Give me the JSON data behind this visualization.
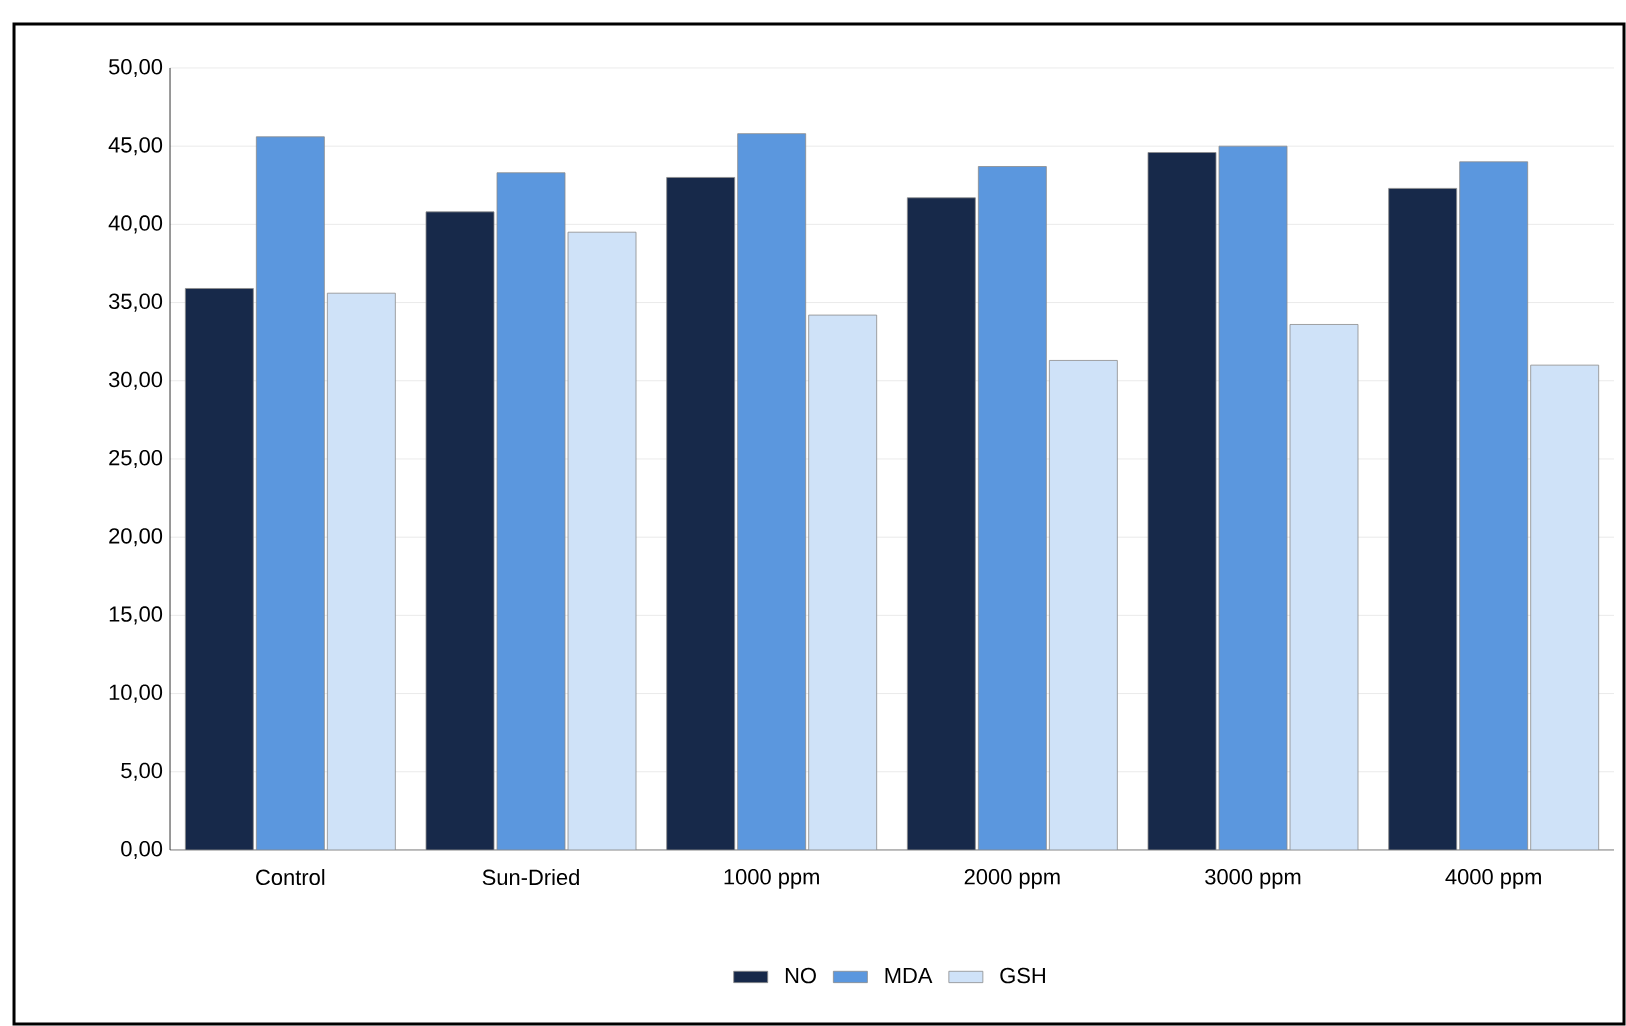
{
  "chart_data": {
    "type": "bar",
    "categories": [
      "Control",
      "Sun-Dried",
      "1000 ppm",
      "2000 ppm",
      "3000 ppm",
      "4000 ppm"
    ],
    "series": [
      {
        "name": "NO",
        "color": "#17294a",
        "values": [
          35.9,
          40.8,
          43.0,
          41.7,
          44.6,
          42.3
        ]
      },
      {
        "name": "MDA",
        "color": "#5b97de",
        "values": [
          45.6,
          43.3,
          45.8,
          43.7,
          45.0,
          44.0
        ]
      },
      {
        "name": "GSH",
        "color": "#cfe2f8",
        "values": [
          35.6,
          39.5,
          34.2,
          31.3,
          33.6,
          31.0
        ]
      }
    ],
    "ylim": [
      0,
      50
    ],
    "yticks": [
      {
        "value": 0,
        "label": "0,00"
      },
      {
        "value": 5,
        "label": "5,00"
      },
      {
        "value": 10,
        "label": "10,00"
      },
      {
        "value": 15,
        "label": "15,00"
      },
      {
        "value": 20,
        "label": "20,00"
      },
      {
        "value": 25,
        "label": "25,00"
      },
      {
        "value": 30,
        "label": "30,00"
      },
      {
        "value": 35,
        "label": "35,00"
      },
      {
        "value": 40,
        "label": "40,00"
      },
      {
        "value": 45,
        "label": "45,00"
      },
      {
        "value": 50,
        "label": "50,00"
      }
    ],
    "grid": "y",
    "legend": "bottom"
  }
}
